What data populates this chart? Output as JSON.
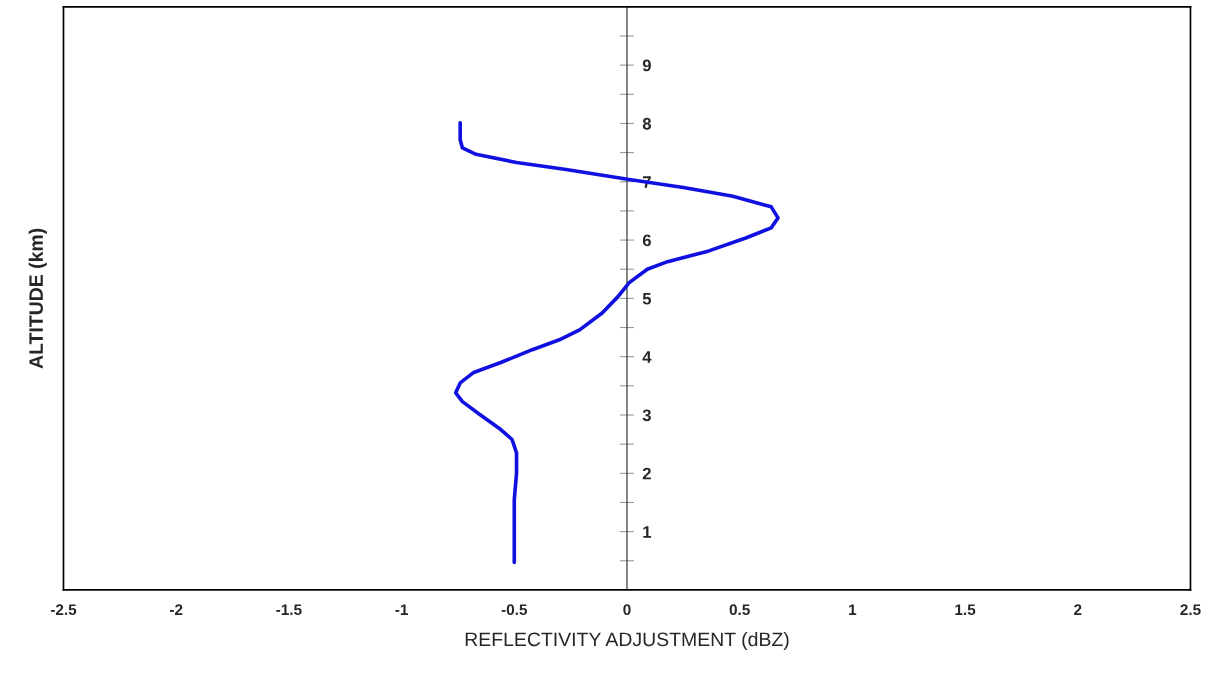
{
  "chart_data": {
    "type": "line",
    "xlabel": "REFLECTIVITY ADJUSTMENT (dBZ)",
    "ylabel": "ALTITUDE (km)",
    "xlim": [
      -2.5,
      2.5
    ],
    "ylim": [
      0,
      10
    ],
    "xticks": [
      -2.5,
      -2,
      -1.5,
      -1,
      -0.5,
      0,
      0.5,
      1,
      1.5,
      2,
      2.5
    ],
    "yticks": [
      {
        "value": 0.5,
        "label": null
      },
      1,
      {
        "value": 1.5,
        "label": null
      },
      2,
      {
        "value": 2.5,
        "label": null
      },
      3,
      {
        "value": 3.5,
        "label": null
      },
      4,
      {
        "value": 4.5,
        "label": null
      },
      5,
      {
        "value": 5.5,
        "label": null
      },
      6,
      {
        "value": 6.5,
        "label": null
      },
      7,
      {
        "value": 7.5,
        "label": null
      },
      8,
      {
        "value": 8.5,
        "label": null
      },
      9,
      {
        "value": 9.5,
        "label": null
      }
    ],
    "grid": false,
    "legend": false,
    "marker": "none",
    "line_style": "solid",
    "series": [
      {
        "color": "#1010e0",
        "x": [
          -0.5,
          -0.5,
          -0.49,
          -0.49,
          -0.51,
          -0.56,
          -0.65,
          -0.73,
          -0.76,
          -0.74,
          -0.68,
          -0.56,
          -0.42,
          -0.3,
          -0.21,
          -0.11,
          -0.04,
          0.01,
          0.09,
          0.18,
          0.36,
          0.53,
          0.64,
          0.67,
          0.64,
          0.47,
          0.25,
          0.01,
          -0.27,
          -0.49,
          -0.67,
          -0.73,
          -0.74,
          -0.74
        ],
        "values": [
          0.47,
          1.55,
          2.0,
          2.35,
          2.58,
          2.75,
          3.0,
          3.23,
          3.38,
          3.55,
          3.73,
          3.9,
          4.12,
          4.29,
          4.46,
          4.75,
          5.03,
          5.27,
          5.5,
          5.63,
          5.81,
          6.04,
          6.21,
          6.38,
          6.57,
          6.75,
          6.9,
          7.04,
          7.21,
          7.33,
          7.47,
          7.58,
          7.72,
          8.01
        ]
      }
    ]
  }
}
